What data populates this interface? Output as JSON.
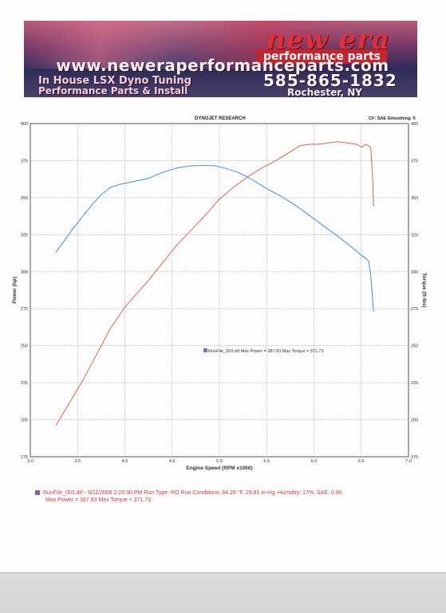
{
  "banner": {
    "logo_text": "new era",
    "logo_sub": "performance parts",
    "url": "www.neweraperformanceparts.com",
    "line1": "In House LSX Dyno Tuning",
    "line2": "Performance Parts & Install",
    "phone": "585-865-1832",
    "city": "Rochester, NY"
  },
  "header": {
    "title": "DYNOJET RESEARCH",
    "meta": "CF: SAE  Smoothing: 5"
  },
  "footer": {
    "line1": "RunFile_003.drf - 9/11/2008 2:20:30 PM  Run Type: RO  Run Conditions: 84.28 °F, 29.81 in-Hg,  Humidity:  17%,  SAE: 0.90",
    "line2": "Max Power = 387.83  Max Torque = 371.73"
  },
  "colors": {
    "power": "#e0624e",
    "torque": "#3f8fd8",
    "grid": "#9a9a9a"
  },
  "chart_data": {
    "type": "line",
    "title": "DYNOJET RESEARCH",
    "xlabel": "Engine Speed (RPM x1000)",
    "ylabel_left": "Power (hp)",
    "ylabel_right": "Torque (ft-lbs)",
    "xlim": [
      3.0,
      7.0
    ],
    "ylim": [
      175,
      400
    ],
    "x_ticks": [
      "3.0",
      "3.5",
      "4.0",
      "4.5",
      "5.0",
      "5.5",
      "6.0",
      "6.5",
      "7.0"
    ],
    "y_ticks": [
      "175",
      "200",
      "225",
      "250",
      "275",
      "300",
      "325",
      "350",
      "375",
      "400"
    ],
    "annotation": "RunFile_003.drf Max Power = 387.83    Max Torque = 371.73",
    "grid": true,
    "series": [
      {
        "name": "Power",
        "axis": "left",
        "x": [
          3.27,
          3.4,
          3.55,
          3.7,
          3.85,
          4.0,
          4.15,
          4.25,
          4.4,
          4.55,
          4.7,
          4.85,
          5.0,
          5.15,
          5.3,
          5.45,
          5.6,
          5.75,
          5.85,
          5.95,
          6.05,
          6.15,
          6.25,
          6.35,
          6.45,
          6.5,
          6.55,
          6.6,
          6.62,
          6.63
        ],
        "y": [
          196,
          210,
          226,
          244,
          262,
          276,
          287,
          294,
          306,
          318,
          328,
          338,
          349,
          357,
          364,
          370,
          375,
          381,
          385,
          386,
          386,
          387,
          387.8,
          387,
          386,
          384,
          386,
          384,
          365,
          344
        ]
      },
      {
        "name": "Torque",
        "axis": "right",
        "x": [
          3.27,
          3.35,
          3.45,
          3.55,
          3.65,
          3.75,
          3.85,
          3.95,
          4.1,
          4.25,
          4.4,
          4.55,
          4.7,
          4.85,
          4.95,
          5.05,
          5.2,
          5.35,
          5.5,
          5.65,
          5.8,
          5.95,
          6.1,
          6.25,
          6.35,
          6.45,
          6.5,
          6.55,
          6.58,
          6.6,
          6.63
        ],
        "y": [
          313,
          320,
          329,
          337,
          345,
          352,
          357,
          359,
          361,
          363,
          367,
          370,
          371.5,
          371.7,
          371.5,
          370,
          367,
          362,
          356,
          351,
          345,
          338,
          331,
          324,
          319,
          314,
          311,
          309,
          307,
          298,
          273
        ]
      }
    ]
  }
}
